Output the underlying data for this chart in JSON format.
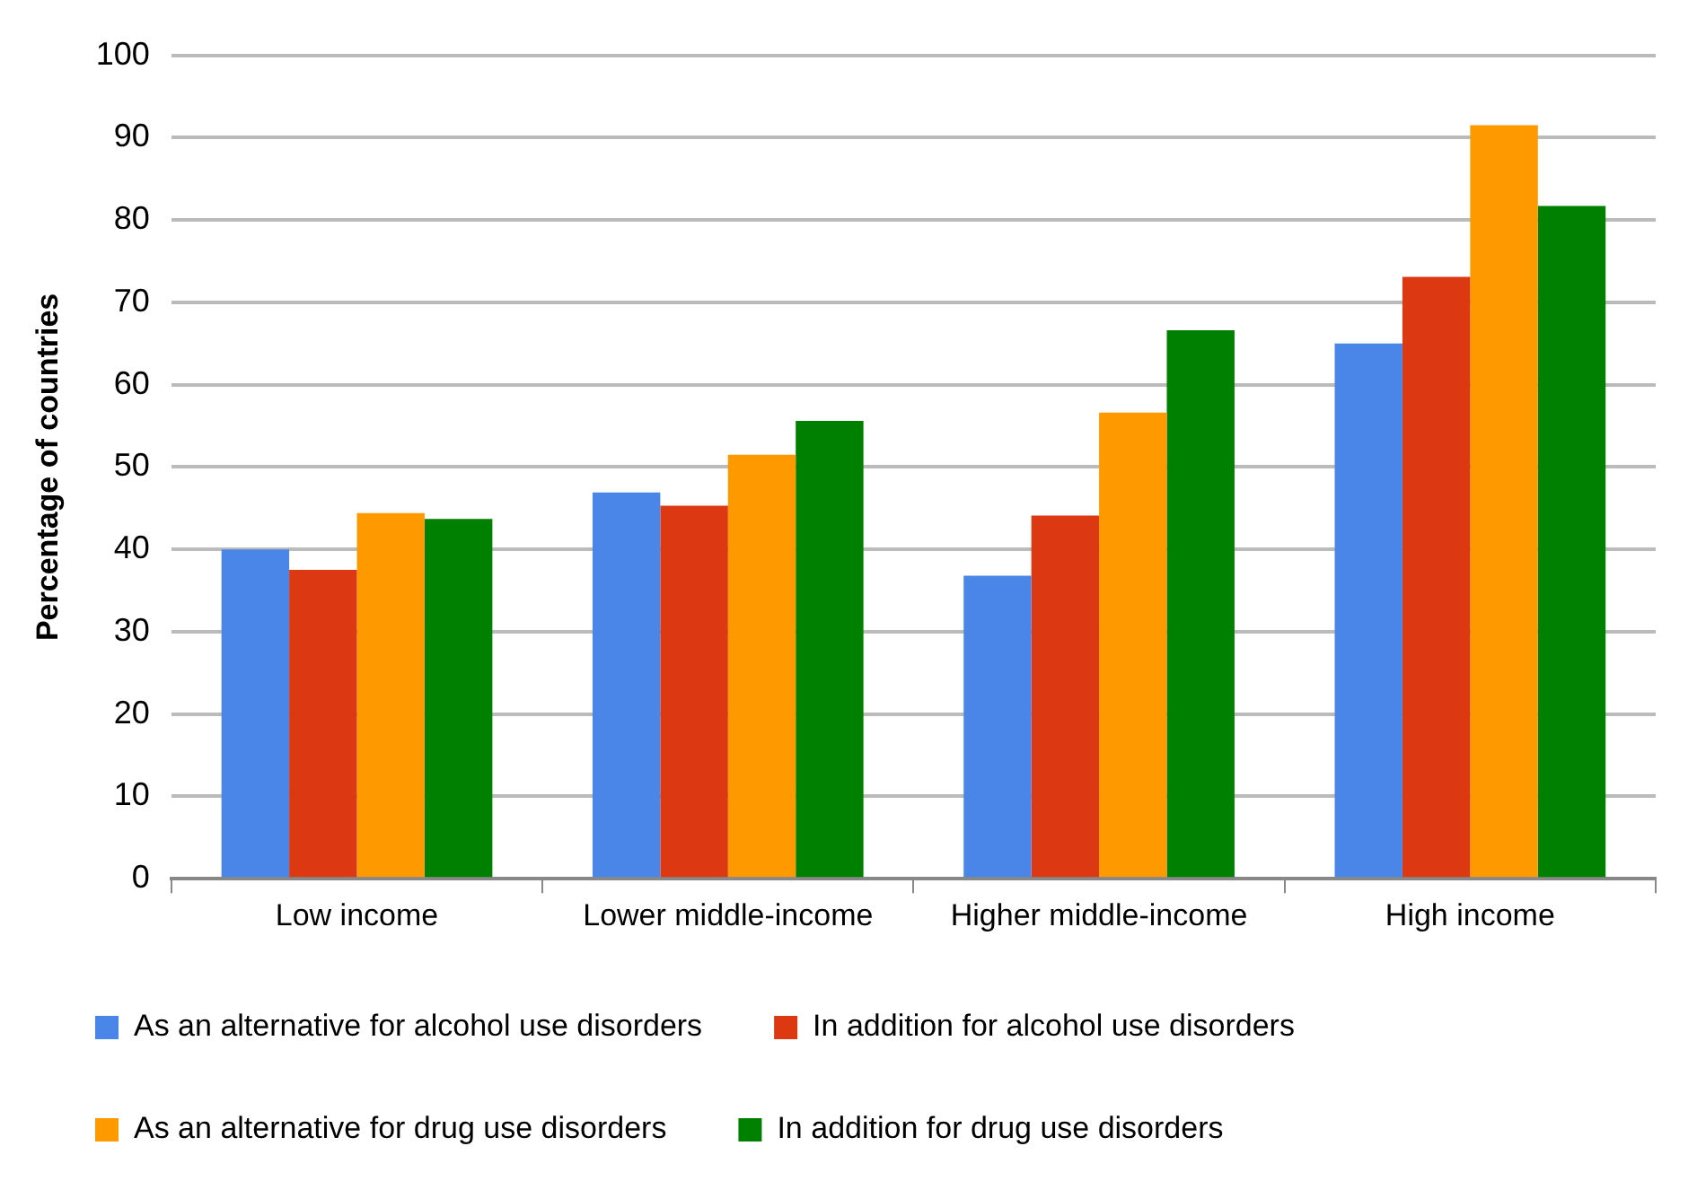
{
  "chart_data": {
    "type": "bar",
    "ylabel": "Percentage of countries",
    "categories": [
      "Low income",
      "Lower middle-income",
      "Higher middle-income",
      "High income"
    ],
    "series": [
      {
        "name": "As an alternative for alcohol use disorders",
        "color": "#4a86e8",
        "values": [
          40,
          46.9,
          36.8,
          65
        ]
      },
      {
        "name": "In addition for alcohol use disorders",
        "color": "#dc3912",
        "values": [
          37.5,
          45.3,
          44.1,
          73.1
        ]
      },
      {
        "name": "As an alternative for drug use disorders",
        "color": "#ff9900",
        "values": [
          44.4,
          51.5,
          56.6,
          91.5
        ]
      },
      {
        "name": "In addition for drug use disorders",
        "color": "#008000",
        "values": [
          43.7,
          55.6,
          66.6,
          81.7
        ]
      }
    ],
    "ylim": [
      0,
      100
    ],
    "yticks": [
      0,
      10,
      20,
      30,
      40,
      50,
      60,
      70,
      80,
      90,
      100
    ],
    "grid": "y",
    "legend": "bottom"
  }
}
